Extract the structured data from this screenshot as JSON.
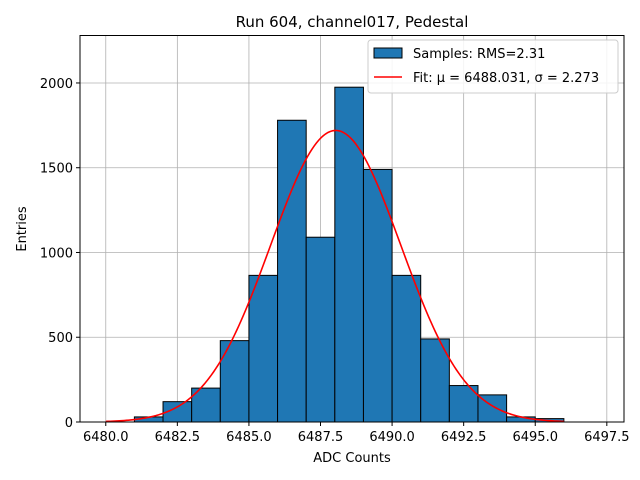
{
  "chart_data": {
    "type": "bar",
    "title": "Run 604, channel017, Pedestal",
    "xlabel": "ADC Counts",
    "ylabel": "Entries",
    "xlim": [
      6479.1,
      6498.1
    ],
    "ylim": [
      0,
      2280
    ],
    "xticks": [
      6480.0,
      6482.5,
      6485.0,
      6487.5,
      6490.0,
      6492.5,
      6495.0,
      6497.5
    ],
    "xtick_labels": [
      "6480.0",
      "6482.5",
      "6485.0",
      "6487.5",
      "6490.0",
      "6492.5",
      "6495.0",
      "6497.5"
    ],
    "yticks": [
      0,
      500,
      1000,
      1500,
      2000
    ],
    "ytick_labels": [
      "0",
      "500",
      "1000",
      "1500",
      "2000"
    ],
    "grid": true,
    "bin_edges": [
      6481,
      6482,
      6483,
      6484,
      6485,
      6486,
      6487,
      6488,
      6489,
      6490,
      6491,
      6492,
      6493,
      6494,
      6495,
      6496
    ],
    "values": [
      30,
      120,
      200,
      480,
      865,
      1780,
      1090,
      1975,
      1490,
      865,
      490,
      215,
      160,
      30,
      20
    ],
    "bar_color": "#1f77b4",
    "edge_color": "#000000",
    "fit": {
      "mu": 6488.031,
      "sigma": 2.273,
      "amplitude": 1720,
      "x_range": [
        6480.0,
        6496.0
      ],
      "color": "#ff0000"
    },
    "legend": {
      "placement": "top-right",
      "entries": [
        {
          "label": "Samples: RMS=2.31",
          "kind": "patch",
          "color": "#1f77b4"
        },
        {
          "label": "Fit: μ = 6488.031, σ = 2.273",
          "kind": "line",
          "color": "#ff0000"
        }
      ]
    }
  }
}
